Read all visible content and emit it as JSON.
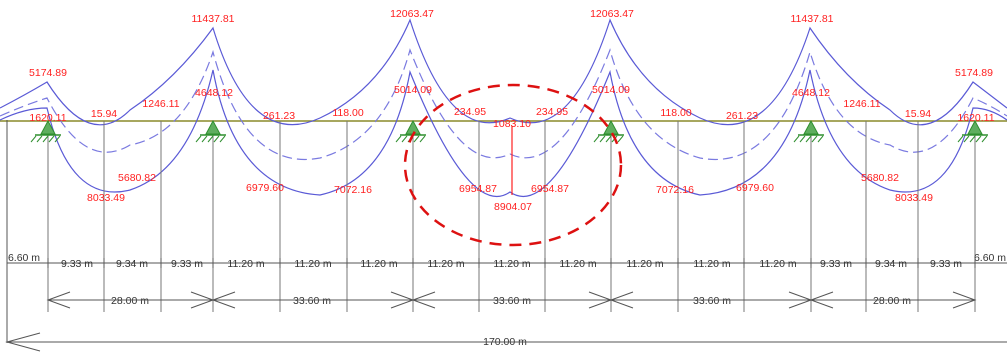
{
  "colors": {
    "beam": "#8a8a2a",
    "curve": "#5a5ad6",
    "value": "#ff2020",
    "support": "#2f8f2f",
    "dimension": "#333333",
    "highlight": "#dd1111"
  },
  "moment_values": {
    "top": [
      "11437.81",
      "12063.47",
      "12063.47",
      "11437.81"
    ],
    "top_outer_left": "5174.89",
    "top_outer_right": "5174.89",
    "support_left_right": [
      "4648.12",
      "5014.09",
      "5014.09",
      "4648.12"
    ],
    "inner_axis": [
      "1620.11",
      "15.94",
      "1246.11",
      "261.23",
      "118.00",
      "234.95",
      "1083.10",
      "234.95",
      "118.00",
      "261.23",
      "1246.11",
      "15.94",
      "1620.11"
    ],
    "bottom": [
      "8033.49",
      "5680.82",
      "6979.60",
      "7072.16",
      "6954.87",
      "8904.07",
      "6954.87",
      "7072.16",
      "6979.60",
      "5680.82",
      "8033.49"
    ]
  },
  "dimensions": {
    "spacings": [
      "6.60 m",
      "9.33 m",
      "9.34 m",
      "9.33 m",
      "11.20 m",
      "11.20 m",
      "11.20 m",
      "11.20 m",
      "11.20 m",
      "11.20 m",
      "11.20 m",
      "11.20 m",
      "11.20 m",
      "9.33 m",
      "9.34 m",
      "9.33 m",
      "6.60 m"
    ],
    "spans": [
      "28.00 m",
      "33.60 m",
      "33.60 m",
      "33.60 m",
      "28.00 m"
    ],
    "total": "170.00 m"
  }
}
